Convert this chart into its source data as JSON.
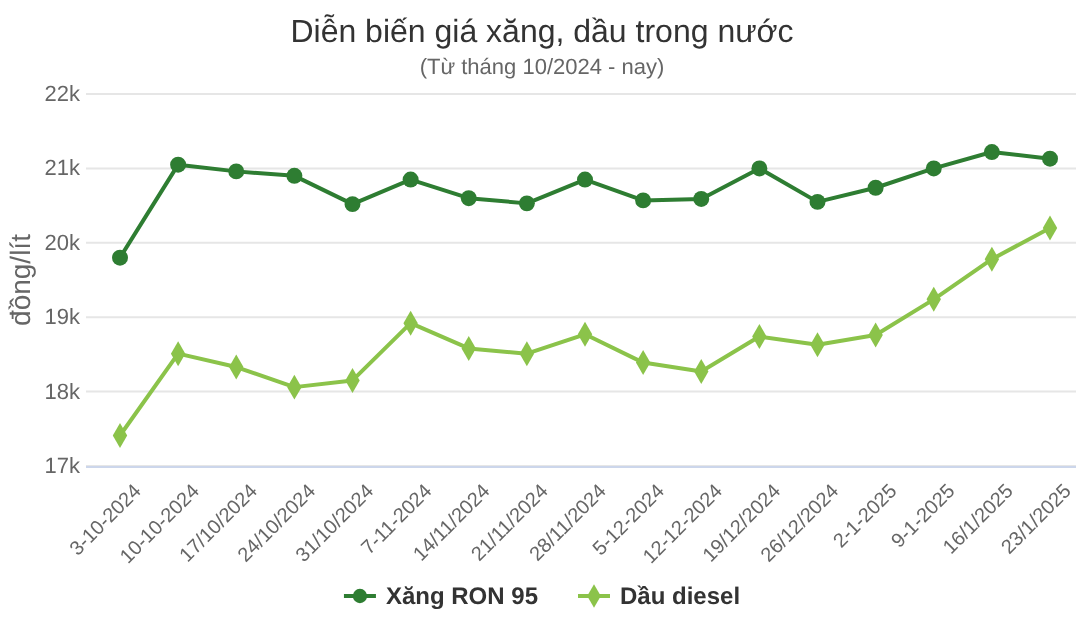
{
  "chart_data": {
    "type": "line",
    "title": "Diễn biến giá xăng, dầu trong nước",
    "subtitle": "(Từ tháng 10/2024 - nay)",
    "ylabel": "đồng/lít",
    "categories": [
      "3-10-2024",
      "10-10-2024",
      "17/10/2024",
      "24/10/2024",
      "31/10/2024",
      "7-11-2024",
      "14/11/2024",
      "21/11/2024",
      "28/11/2024",
      "5-12-2024",
      "12-12-2024",
      "19/12/2024",
      "26/12/2024",
      "2-1-2025",
      "9-1-2025",
      "16/1/2025",
      "23/1/2025"
    ],
    "series": [
      {
        "name": "Xăng RON 95",
        "color": "#2e7d32",
        "marker": "circle",
        "values": [
          19800,
          21050,
          20960,
          20900,
          20520,
          20850,
          20600,
          20530,
          20850,
          20570,
          20590,
          21000,
          20550,
          20740,
          21000,
          21220,
          21130
        ]
      },
      {
        "name": "Dầu diesel",
        "color": "#8bc34a",
        "marker": "diamond",
        "values": [
          17410,
          18510,
          18330,
          18060,
          18150,
          18920,
          18580,
          18510,
          18770,
          18390,
          18270,
          18740,
          18630,
          18760,
          19240,
          19780,
          20200
        ]
      }
    ],
    "ylim": [
      17000,
      22000
    ],
    "yticks": [
      {
        "value": 17000,
        "label": "17k"
      },
      {
        "value": 18000,
        "label": "18k"
      },
      {
        "value": 19000,
        "label": "19k"
      },
      {
        "value": 20000,
        "label": "20k"
      },
      {
        "value": 21000,
        "label": "21k"
      },
      {
        "value": 22000,
        "label": "22k"
      }
    ],
    "grid": "y",
    "legend": "bottom",
    "line_style": "solid"
  }
}
